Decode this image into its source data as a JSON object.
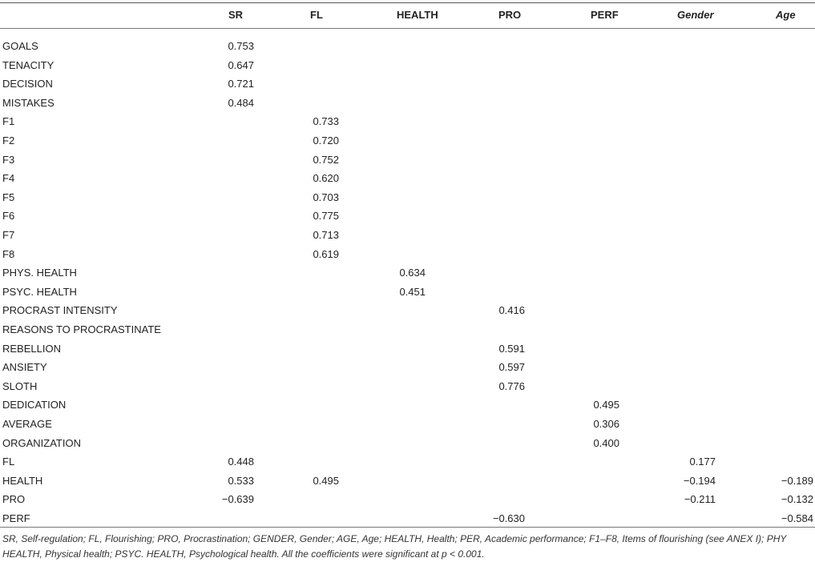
{
  "headers": {
    "sr": "SR",
    "fl": "FL",
    "health": "HEALTH",
    "pro": "PRO",
    "perf": "PERF",
    "gender": "Gender",
    "age": "Age"
  },
  "rows": [
    {
      "label": "GOALS",
      "sr": "0.753"
    },
    {
      "label": "TENACITY",
      "sr": "0.647"
    },
    {
      "label": "DECISION",
      "sr": "0.721"
    },
    {
      "label": "MISTAKES",
      "sr": "0.484"
    },
    {
      "label": "F1",
      "fl": "0.733"
    },
    {
      "label": "F2",
      "fl": "0.720"
    },
    {
      "label": "F3",
      "fl": "0.752"
    },
    {
      "label": "F4",
      "fl": "0.620"
    },
    {
      "label": "F5",
      "fl": "0.703"
    },
    {
      "label": "F6",
      "fl": "0.775"
    },
    {
      "label": "F7",
      "fl": "0.713"
    },
    {
      "label": "F8",
      "fl": "0.619"
    },
    {
      "label": "PHYS. HEALTH",
      "health": "0.634"
    },
    {
      "label": "PSYC. HEALTH",
      "health": "0.451"
    },
    {
      "label": "PROCRAST INTENSITY",
      "pro": "0.416"
    },
    {
      "label": "REASONS TO PROCRASTINATE"
    },
    {
      "label": "REBELLION",
      "pro": "0.591"
    },
    {
      "label": "ANSIETY",
      "pro": "0.597"
    },
    {
      "label": "SLOTH",
      "pro": "0.776"
    },
    {
      "label": "DEDICATION",
      "perf": "0.495"
    },
    {
      "label": "AVERAGE",
      "perf": "0.306"
    },
    {
      "label": "ORGANIZATION",
      "perf": "0.400"
    },
    {
      "label": "FL",
      "sr": "0.448",
      "gender": "0.177"
    },
    {
      "label": "HEALTH",
      "sr": "0.533",
      "fl": "0.495",
      "gender": "−0.194",
      "age": "−0.189"
    },
    {
      "label": "PRO",
      "sr": "−0.639",
      "gender": "−0.211",
      "age": "−0.132"
    },
    {
      "label": "PERF",
      "pro": "−0.630",
      "age": "−0.584"
    }
  ],
  "footnote": "SR, Self-regulation; FL, Flourishing; PRO, Procrastination; GENDER, Gender; AGE, Age; HEALTH, Health; PER, Academic performance; F1–F8, Items of flourishing (see ANEX I); PHY HEALTH, Physical health; PSYC. HEALTH, Psychological health. All the coefficients were significant at p < 0.001."
}
